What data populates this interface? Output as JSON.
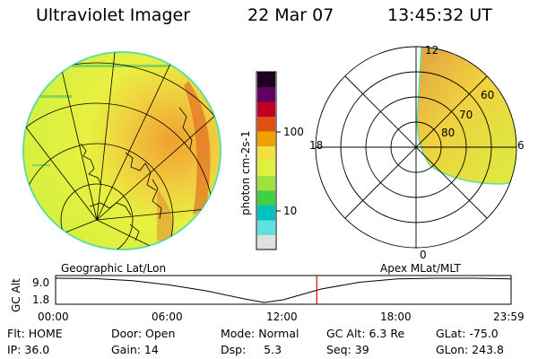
{
  "header": {
    "title": "Ultraviolet Imager",
    "date": "22 Mar 07",
    "time": "13:45:32 UT"
  },
  "colorbar": {
    "label": "photon cm-2s-1",
    "ticks": [
      "100",
      "10"
    ],
    "scale": "log",
    "colors": [
      "#e0e0e0",
      "#60e0e0",
      "#00c0c0",
      "#40d040",
      "#a0e040",
      "#e0f040",
      "#f0e040",
      "#f0a000",
      "#e05010",
      "#c00020",
      "#600060",
      "#200020"
    ]
  },
  "polar": {
    "labels": [
      "12",
      "18",
      "6",
      "0",
      "80",
      "70",
      "60"
    ]
  },
  "timeline": {
    "left_title": "Geographic Lat/Lon",
    "right_title": "Apex MLat/MLT",
    "axis_label": "GC Alt",
    "y_ticks": [
      "9.0",
      "1.8"
    ],
    "x_ticks": [
      "00:00",
      "06:00",
      "12:00",
      "18:00",
      "23:59"
    ],
    "x_values_hours": [
      0,
      6,
      12,
      18,
      24
    ],
    "current_time_hours": 13.76,
    "marker_color": "#dd0000",
    "chart_data": {
      "type": "line",
      "ylabel": "GC Alt",
      "ylim": [
        1.8,
        9.0
      ],
      "x": [
        0,
        2,
        4,
        6,
        8,
        10,
        11,
        12,
        14,
        16,
        18,
        20,
        22,
        24
      ],
      "y": [
        9.0,
        8.9,
        8.3,
        7.0,
        5.2,
        2.8,
        1.8,
        2.6,
        5.8,
        7.8,
        8.8,
        9.0,
        9.0,
        8.8
      ]
    }
  },
  "footer": {
    "row1": [
      "Flt: HOME",
      "Door: Open",
      "Mode: Normal",
      "GC Alt: 6.3 Re",
      "GLat: -75.0"
    ],
    "row2": [
      "IP: 36.0",
      "Gain: 14",
      "Dsp:     5.3",
      "Seq: 39",
      "GLon: 243.8"
    ]
  }
}
